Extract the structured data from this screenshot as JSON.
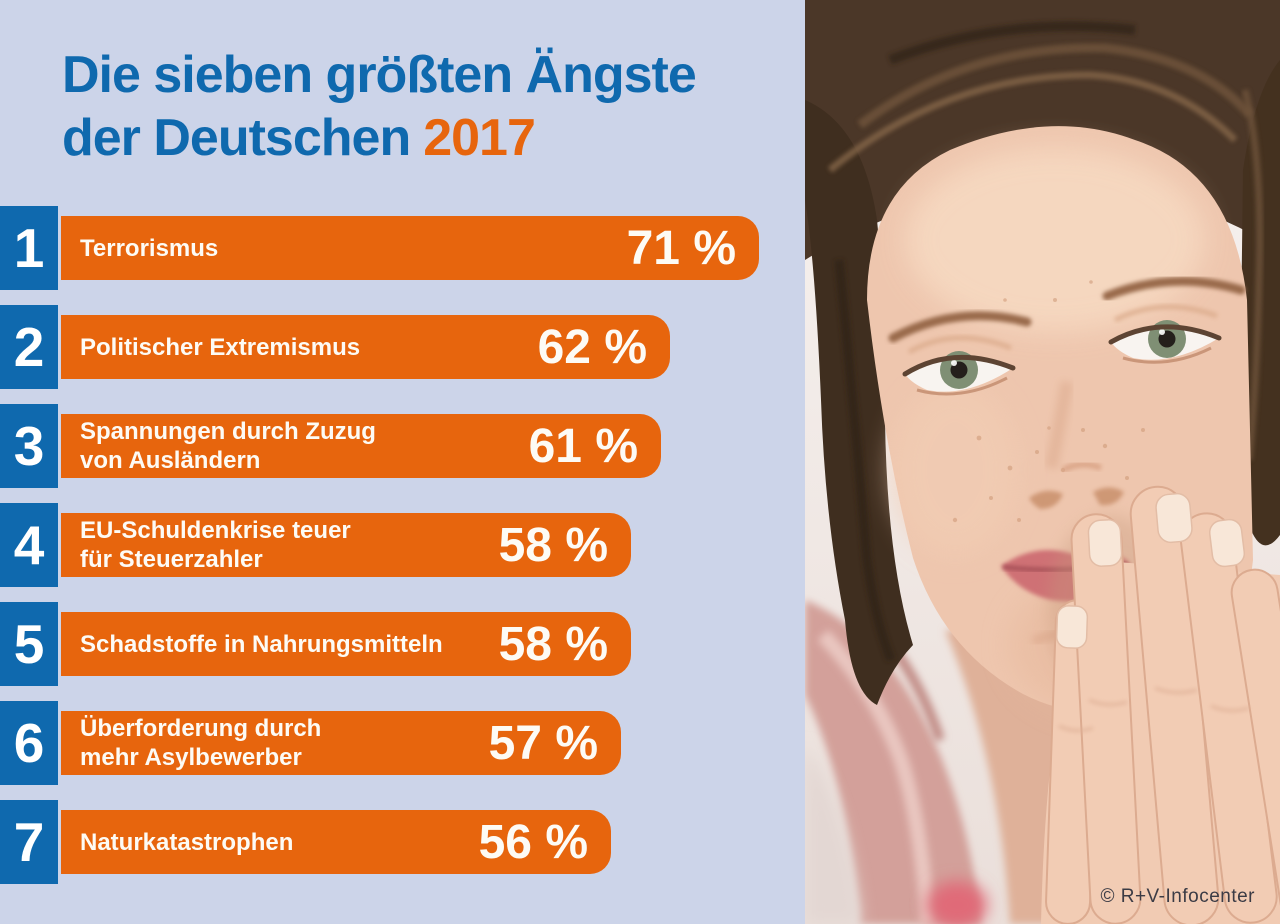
{
  "title": {
    "line1": "Die sieben größten Ängste",
    "line2_text": "der Deutschen",
    "line2_year": "2017"
  },
  "credit": {
    "text": "© R+V-Infocenter"
  },
  "colors": {
    "background": "#ccd4e9",
    "bar_orange": "#e7650d",
    "rank_blue": "#0f69ae",
    "title_blue": "#0f69ae",
    "year_orange": "#e7650d",
    "bar_text": "#fdfbf5",
    "credit_text": "#3b3b45"
  },
  "chart_data": {
    "type": "bar",
    "orientation": "horizontal",
    "title": "Die sieben größten Ängste der Deutschen 2017",
    "unit": "%",
    "xlim": [
      0,
      100
    ],
    "categories": [
      "Terrorismus",
      "Politischer Extremismus",
      "Spannungen durch Zuzug von Ausländern",
      "EU-Schuldenkrise teuer für Steuerzahler",
      "Schadstoffe in Nahrungsmitteln",
      "Überforderung durch mehr Asylbewerber",
      "Naturkatastrophen"
    ],
    "values": [
      71,
      62,
      61,
      58,
      58,
      57,
      56
    ],
    "ranks": [
      1,
      2,
      3,
      4,
      5,
      6,
      7
    ],
    "value_labels": [
      "71 %",
      "62 %",
      "61 %",
      "58 %",
      "58 %",
      "57 %",
      "56 %"
    ],
    "label_lines": [
      [
        "Terrorismus"
      ],
      [
        "Politischer Extremismus"
      ],
      [
        "Spannungen durch Zuzug",
        "von Ausländern"
      ],
      [
        "EU-Schuldenkrise teuer",
        "für Steuerzahler"
      ],
      [
        "Schadstoffe in Nahrungsmitteln"
      ],
      [
        "Überforderung durch",
        "mehr Asylbewerber"
      ],
      [
        "Naturkatastrophen"
      ]
    ]
  }
}
